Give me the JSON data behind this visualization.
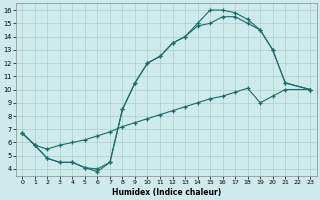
{
  "xlabel": "Humidex (Indice chaleur)",
  "bg_color": "#ceeaea",
  "line_color": "#1a6b6b",
  "grid_color": "#aacfcf",
  "xlim": [
    -0.5,
    23.5
  ],
  "ylim": [
    3.5,
    16.5
  ],
  "xticks": [
    0,
    1,
    2,
    3,
    4,
    5,
    6,
    7,
    8,
    9,
    10,
    11,
    12,
    13,
    14,
    15,
    16,
    17,
    18,
    19,
    20,
    21,
    22,
    23
  ],
  "yticks": [
    4,
    5,
    6,
    7,
    8,
    9,
    10,
    11,
    12,
    13,
    14,
    15,
    16
  ],
  "curve_upper_x": [
    0,
    1,
    2,
    3,
    4,
    5,
    6,
    7,
    8,
    9,
    10,
    11,
    12,
    13,
    14,
    15,
    16,
    17,
    18,
    19,
    20,
    21,
    23
  ],
  "curve_upper_y": [
    6.7,
    5.8,
    4.8,
    4.5,
    4.5,
    4.1,
    3.8,
    4.5,
    8.5,
    10.5,
    12.0,
    12.5,
    13.5,
    14.0,
    15.0,
    16.0,
    16.0,
    15.8,
    15.3,
    14.5,
    13.0,
    10.5,
    10.0
  ],
  "curve_mid_x": [
    0,
    1,
    2,
    3,
    4,
    5,
    6,
    7,
    8,
    9,
    10,
    11,
    12,
    13,
    14,
    15,
    16,
    17,
    18,
    19,
    20,
    21,
    23
  ],
  "curve_mid_y": [
    6.7,
    5.8,
    4.8,
    4.5,
    4.5,
    4.1,
    4.0,
    4.5,
    8.5,
    10.5,
    12.0,
    12.5,
    13.5,
    14.0,
    14.8,
    15.0,
    15.5,
    15.5,
    15.0,
    14.5,
    13.0,
    10.5,
    10.0
  ],
  "curve_diag_x": [
    0,
    1,
    2,
    3,
    4,
    5,
    6,
    7,
    8,
    9,
    10,
    11,
    12,
    13,
    14,
    15,
    16,
    17,
    18,
    19,
    20,
    21,
    23
  ],
  "curve_diag_y": [
    6.7,
    5.8,
    5.5,
    5.8,
    6.0,
    6.2,
    6.5,
    6.8,
    7.2,
    7.5,
    7.8,
    8.1,
    8.4,
    8.7,
    9.0,
    9.3,
    9.5,
    9.8,
    10.1,
    9.0,
    9.5,
    10.0,
    10.0
  ]
}
